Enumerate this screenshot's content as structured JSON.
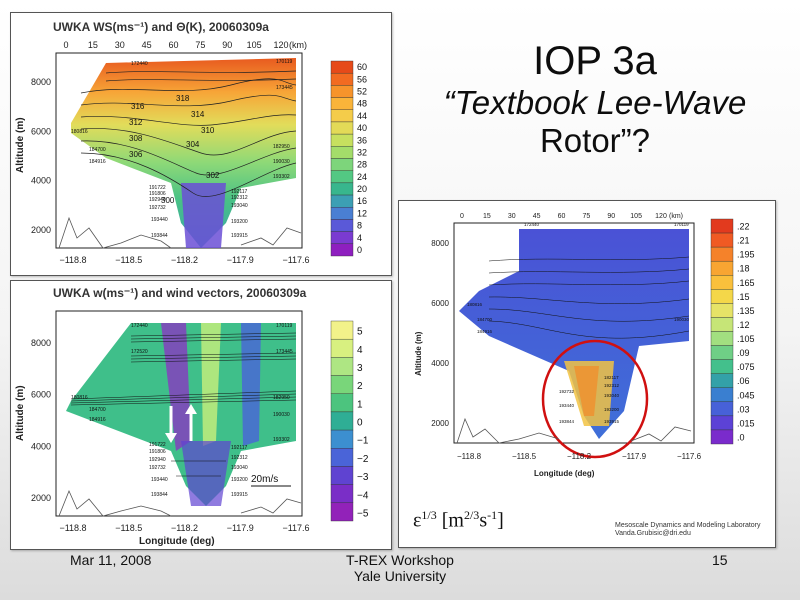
{
  "slide": {
    "title_line1": "IOP 3a",
    "title_line2": "“Textbook Lee-Wave",
    "title_line3": "Rotor”?",
    "footer_date": "Mar 11, 2008",
    "footer_event_line1": "T-REX Workshop",
    "footer_event_line2": "Yale University",
    "page_number": "15"
  },
  "panel_top": {
    "title": "UWKA WS(ms⁻¹) and Θ(K), 20060309a",
    "top_ticks": [
      "0",
      "15",
      "30",
      "45",
      "60",
      "75",
      "90",
      "105",
      "120"
    ],
    "top_unit": "(km)",
    "y_label": "Altitude (m)",
    "y_ticks": [
      "8000",
      "6000",
      "4000",
      "2000"
    ],
    "x_ticks": [
      "−118.8",
      "−118.5",
      "−118.2",
      "−117.9",
      "−117.6"
    ],
    "colorbar_labels": [
      "60",
      "56",
      "52",
      "48",
      "44",
      "40",
      "36",
      "32",
      "28",
      "24",
      "20",
      "16",
      "12",
      "8",
      "4",
      "0"
    ],
    "theta_labels": [
      "318",
      "316",
      "312",
      "314",
      "308",
      "310",
      "306",
      "304",
      "302",
      "300"
    ],
    "leg_labels": [
      "172440",
      "170119",
      "173445",
      "180816",
      "184700",
      "184916",
      "182950",
      "190030",
      "193302",
      "191722",
      "191806",
      "192117",
      "192940",
      "192312",
      "192732",
      "193040",
      "193440",
      "193200",
      "193844",
      "193915"
    ]
  },
  "panel_bottom": {
    "title": "UWKA w(ms⁻¹) and wind vectors, 20060309a",
    "y_label": "Altitude (m)",
    "x_label": "Longitude (deg)",
    "y_ticks": [
      "8000",
      "6000",
      "4000",
      "2000"
    ],
    "x_ticks": [
      "−118.8",
      "−118.5",
      "−118.2",
      "−117.9",
      "−117.6"
    ],
    "colorbar_labels": [
      "5",
      "4",
      "3",
      "2",
      "1",
      "0",
      "−1",
      "−2",
      "−3",
      "−4",
      "−5"
    ],
    "vector_scale": "20m/s",
    "leg_labels": [
      "172440",
      "170119",
      "172520",
      "173445",
      "180816",
      "182950",
      "184700",
      "184916",
      "190030",
      "191722",
      "191806",
      "192940",
      "192117",
      "192312",
      "193302",
      "192732",
      "193040",
      "193440",
      "193200",
      "193844",
      "193915"
    ]
  },
  "panel_right": {
    "top_ticks": [
      "0",
      "15",
      "30",
      "45",
      "60",
      "75",
      "90",
      "105",
      "120"
    ],
    "top_unit": "(km)",
    "y_label": "Altitude (m)",
    "x_label": "Longitude (deg)",
    "y_ticks": [
      "8000",
      "6000",
      "4000",
      "2000"
    ],
    "x_ticks": [
      "−118.8",
      "−118.5",
      "−118.2",
      "−117.9",
      "−117.6"
    ],
    "colorbar_labels": [
      ".22",
      ".21",
      ".195",
      ".18",
      ".165",
      ".15",
      ".135",
      ".12",
      ".105",
      ".09",
      ".075",
      ".06",
      ".045",
      ".03",
      ".015",
      ".0"
    ],
    "epsilon_label": "ε",
    "epsilon_sup": "1/3",
    "epsilon_units_prefix": " [m",
    "epsilon_units_sup1": "2/3",
    "epsilon_units_mid": "s",
    "epsilon_units_sup2": "-1",
    "epsilon_units_suffix": "]",
    "lab_credit_line1": "Mesoscale Dynamics and Modeling Laboratory",
    "lab_credit_line2": "Vanda.Grubisic@dri.edu",
    "leg_labels": [
      "172440",
      "170119",
      "180816",
      "184700",
      "184916",
      "190030",
      "182117",
      "192312",
      "192732",
      "193040",
      "193440",
      "193200",
      "193844",
      "193915"
    ]
  },
  "colors": {
    "ws_colorbar": [
      "#e64a19",
      "#f26b21",
      "#f7942b",
      "#fab43a",
      "#f4cc4a",
      "#e3da57",
      "#c7e05f",
      "#a4dd6a",
      "#7dd57b",
      "#53c883",
      "#38b68d",
      "#3c9fb4",
      "#4a7fd3",
      "#5a59d8",
      "#7a3bd1",
      "#8e1fbf"
    ],
    "w_colorbar": [
      "#f2f28a",
      "#d8f080",
      "#aee683",
      "#79d67a",
      "#4cc47e",
      "#2fae95",
      "#3c8fd0",
      "#4a64d8",
      "#5f43d1",
      "#7a2ec7",
      "#9222b9"
    ],
    "eps_colorbar": [
      "#e23a1e",
      "#f05a23",
      "#f5822a",
      "#f8a532",
      "#fac03c",
      "#f4d749",
      "#e6e367",
      "#c6e577",
      "#a2df80",
      "#6fcf86",
      "#43c08c",
      "#33a1a8",
      "#3a7fd0",
      "#4761d8",
      "#5c42d6",
      "#7a2bcc"
    ],
    "flight_ellipse": "#d01010"
  }
}
